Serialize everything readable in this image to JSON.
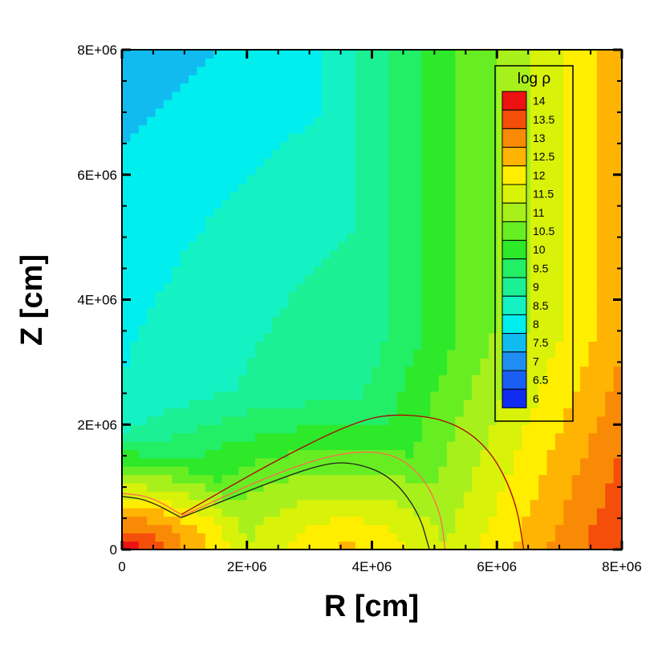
{
  "chart_data": {
    "type": "heatmap",
    "xlabel": "R [cm]",
    "ylabel": "Z [cm]",
    "xlim": [
      0,
      8000000
    ],
    "ylim": [
      0,
      8000000
    ],
    "x_ticks": [
      {
        "value": 0,
        "label": "0"
      },
      {
        "value": 2000000,
        "label": "2E+06"
      },
      {
        "value": 4000000,
        "label": "4E+06"
      },
      {
        "value": 6000000,
        "label": "6E+06"
      },
      {
        "value": 8000000,
        "label": "8E+06"
      }
    ],
    "y_ticks": [
      {
        "value": 0,
        "label": "0"
      },
      {
        "value": 2000000,
        "label": "2E+06"
      },
      {
        "value": 4000000,
        "label": "4E+06"
      },
      {
        "value": 6000000,
        "label": "6E+06"
      },
      {
        "value": 8000000,
        "label": "8E+06"
      }
    ],
    "legend": {
      "title": "log ρ",
      "placement": "top-right",
      "levels": [
        {
          "label": "14",
          "value": 14,
          "color": "#ee1111"
        },
        {
          "label": "13.5",
          "value": 13.5,
          "color": "#f44e0a"
        },
        {
          "label": "13",
          "value": 13,
          "color": "#f98a06"
        },
        {
          "label": "12.5",
          "value": 12.5,
          "color": "#ffb302"
        },
        {
          "label": "12",
          "value": 12,
          "color": "#ffee00"
        },
        {
          "label": "11.5",
          "value": 11.5,
          "color": "#d8f20a"
        },
        {
          "label": "11",
          "value": 11,
          "color": "#a8f01c"
        },
        {
          "label": "10.5",
          "value": 10.5,
          "color": "#66ee22"
        },
        {
          "label": "10",
          "value": 10,
          "color": "#2ee82a"
        },
        {
          "label": "9.5",
          "value": 9.5,
          "color": "#22ee66"
        },
        {
          "label": "9",
          "value": 9,
          "color": "#1cf094"
        },
        {
          "label": "8.5",
          "value": 8.5,
          "color": "#14f2c4"
        },
        {
          "label": "8",
          "value": 8,
          "color": "#00eeee"
        },
        {
          "label": "7.5",
          "value": 7.5,
          "color": "#11bbf0"
        },
        {
          "label": "7",
          "value": 7,
          "color": "#1e8ef2"
        },
        {
          "label": "6.5",
          "value": 6.5,
          "color": "#1a5ff4"
        },
        {
          "label": "6",
          "value": 6,
          "color": "#0f2cf0"
        }
      ]
    },
    "field_model": {
      "description_free": true,
      "core": {
        "value": 14.2,
        "rx": 1800000,
        "rz": 900000,
        "decay": 2.6
      },
      "torus": {
        "value": 12.4,
        "center_r": 3600000,
        "rx": 2700000,
        "rz": 1500000,
        "decay": 2.0
      },
      "outer": {
        "value": 10.6,
        "r0": 8000000,
        "z0": 0,
        "scale": 9000000
      },
      "polar": {
        "value": 6.0,
        "width_r": 2000000,
        "z_start": 3500000
      }
    },
    "contour_lines": [
      {
        "color": "#b00000",
        "points": [
          [
            950000,
            560000
          ],
          [
            2500000,
            1450000
          ],
          [
            3800000,
            2080000
          ],
          [
            4500000,
            2180000
          ],
          [
            5300000,
            2050000
          ],
          [
            5900000,
            1600000
          ],
          [
            6300000,
            800000
          ],
          [
            6430000,
            0
          ]
        ]
      },
      {
        "color": "#ff6a50",
        "points": [
          [
            950000,
            530000
          ],
          [
            2400000,
            1200000
          ],
          [
            3500000,
            1560000
          ],
          [
            4300000,
            1560000
          ],
          [
            4800000,
            1200000
          ],
          [
            5100000,
            600000
          ],
          [
            5170000,
            0
          ]
        ]
      },
      {
        "color": "#202020",
        "points": [
          [
            950000,
            510000
          ],
          [
            2300000,
            1050000
          ],
          [
            3200000,
            1370000
          ],
          [
            3700000,
            1400000
          ],
          [
            4300000,
            1180000
          ],
          [
            4750000,
            600000
          ],
          [
            4920000,
            0
          ]
        ]
      },
      {
        "color": "#202020",
        "points": [
          [
            0,
            850000
          ],
          [
            400000,
            800000
          ],
          [
            950000,
            510000
          ]
        ]
      },
      {
        "color": "#ff6a50",
        "points": [
          [
            0,
            900000
          ],
          [
            450000,
            850000
          ],
          [
            950000,
            560000
          ]
        ]
      }
    ]
  }
}
